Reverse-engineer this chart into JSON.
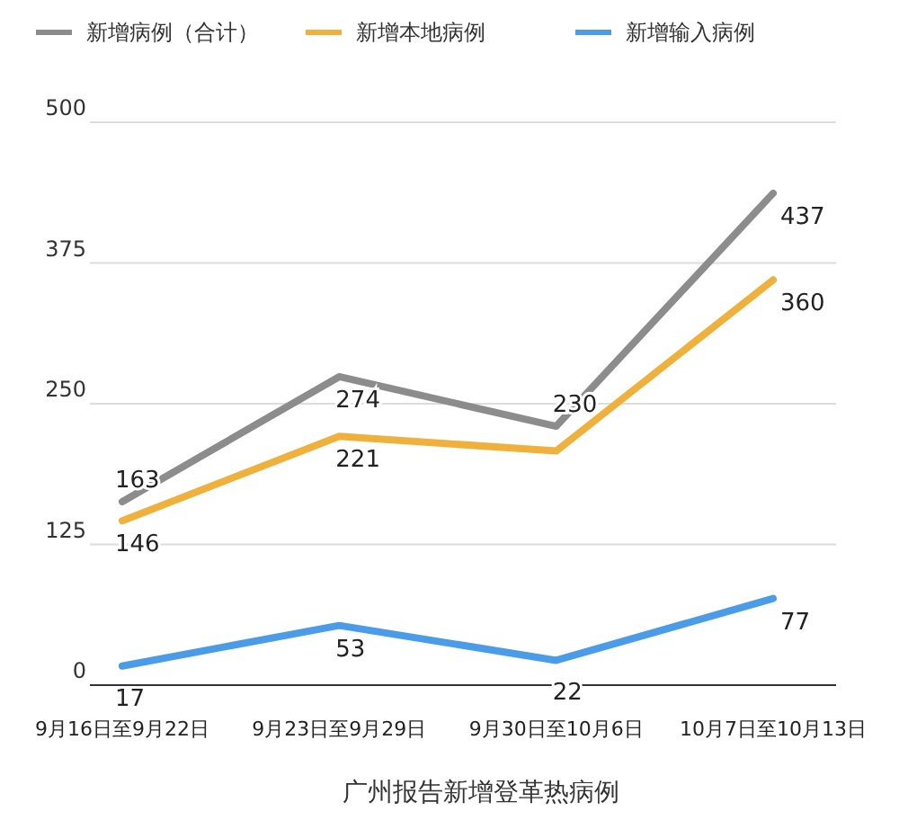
{
  "chart_data": {
    "type": "line",
    "xlabel": "广州报告新增登革热病例",
    "categories": [
      "9月16日至9月22日",
      "9月23日至9月29日",
      "9月30日至10月6日",
      "10月7日至10月13日"
    ],
    "series": [
      {
        "name": "新增病例（合计）",
        "color": "#8c8c8c",
        "values": [
          163,
          274,
          230,
          437
        ],
        "value_labels": [
          "163",
          "274",
          "230",
          "437"
        ]
      },
      {
        "name": "新增本地病例",
        "color": "#f0b13c",
        "values": [
          146,
          221,
          208,
          360
        ],
        "value_labels": [
          "146",
          "221",
          null,
          "360"
        ]
      },
      {
        "name": "新增输入病例",
        "color": "#4a9ce8",
        "values": [
          17,
          53,
          22,
          77
        ],
        "value_labels": [
          "17",
          "53",
          "22",
          "77"
        ]
      }
    ],
    "ylim": [
      0,
      500
    ],
    "yticks": [
      0,
      125,
      250,
      375,
      500
    ],
    "grid": "y",
    "legend": "top",
    "marker": "none",
    "line_style": "solid"
  }
}
